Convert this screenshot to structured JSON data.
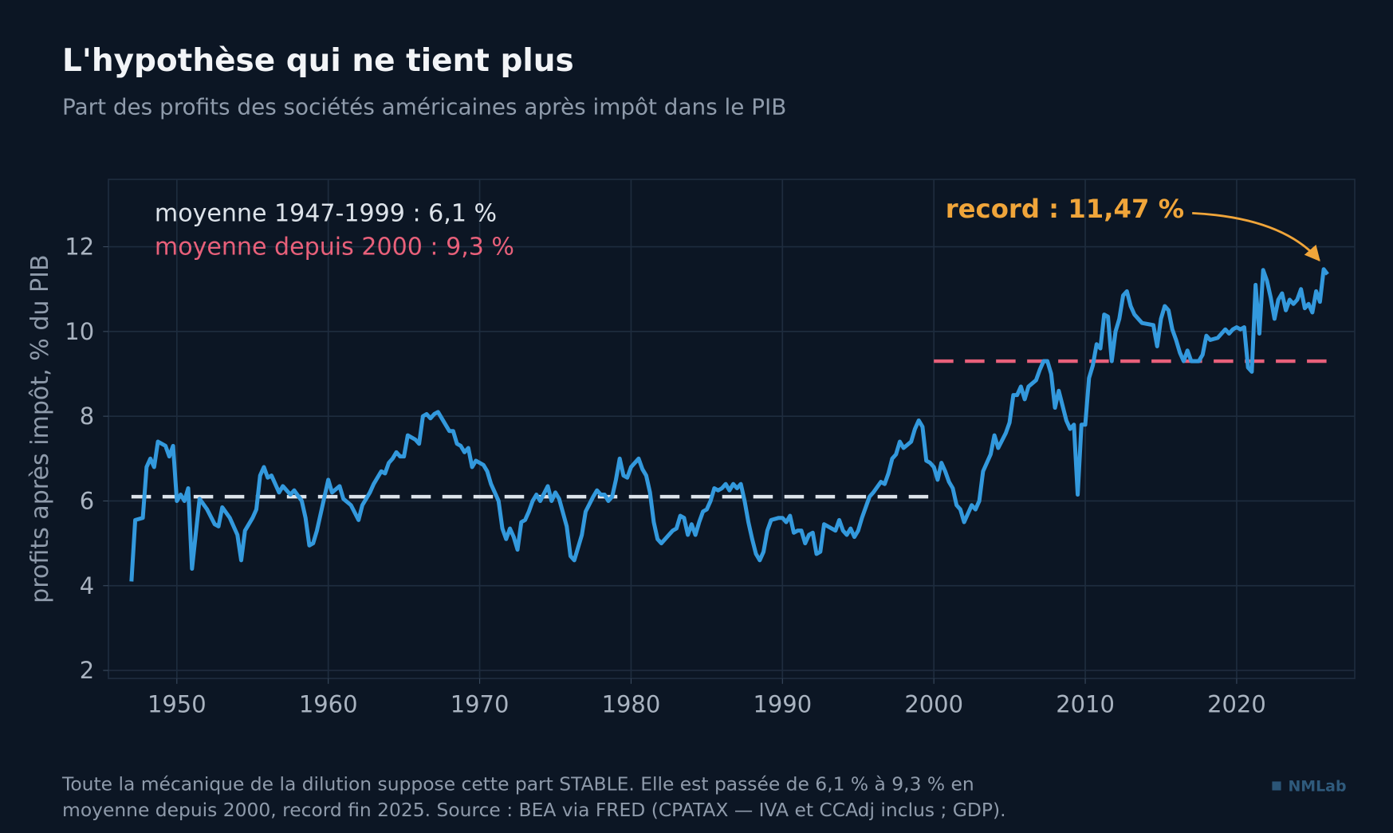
{
  "chart_data": {
    "type": "line",
    "title": "L'hypothèse qui ne tient plus",
    "subtitle": "Part des profits des sociétés américaines après impôt dans le PIB",
    "ylabel": "profits après impôt, % du PIB",
    "footnote": [
      "Toute la mécanique de la dilution suppose cette part STABLE. Elle est passée de 6,1 % à 9,3 % en",
      "moyenne depuis 2000, record fin 2025. Source : BEA via FRED (CPATAX — IVA et CCAdj inclus ; GDP)."
    ],
    "brand": "NMLab",
    "annotation": "record : 11,47 %",
    "annotation_color": "#f0a53a",
    "grid": true,
    "xlim": [
      1945.48,
      2027.8
    ],
    "ylim": [
      1.81,
      13.59
    ],
    "xticks": [
      1950,
      1960,
      1970,
      1980,
      1990,
      2000,
      2010,
      2020
    ],
    "yticks": [
      2,
      4,
      6,
      8,
      10,
      12
    ],
    "mean_lines": [
      {
        "label": "moyenne 1947-1999 : 6,1 %",
        "value": 6.1,
        "x": [
          1947,
          2000
        ],
        "color": "#dde3ea"
      },
      {
        "label": "moyenne depuis 2000 : 9,3 %",
        "value": 9.3,
        "x": [
          2000,
          2026
        ],
        "color": "#e8607a"
      }
    ],
    "x": [
      1947.0,
      1947.25,
      1947.75,
      1948.0,
      1948.25,
      1948.5,
      1948.75,
      1949.25,
      1949.5,
      1949.75,
      1950.0,
      1950.25,
      1950.5,
      1950.75,
      1951.0,
      1951.5,
      1952.0,
      1952.5,
      1952.75,
      1953.0,
      1953.5,
      1953.75,
      1954.0,
      1954.25,
      1954.5,
      1955.0,
      1955.25,
      1955.5,
      1955.75,
      1956.0,
      1956.25,
      1956.75,
      1957.0,
      1957.5,
      1957.75,
      1958.25,
      1958.5,
      1958.75,
      1959.0,
      1959.25,
      1959.75,
      1960.0,
      1960.25,
      1960.75,
      1961.0,
      1961.5,
      1962.0,
      1962.25,
      1962.75,
      1963.0,
      1963.5,
      1963.75,
      1964.0,
      1964.25,
      1964.5,
      1964.75,
      1965.0,
      1965.25,
      1965.75,
      1966.0,
      1966.25,
      1966.5,
      1966.75,
      1967.0,
      1967.25,
      1967.75,
      1968.0,
      1968.25,
      1968.5,
      1968.75,
      1969.0,
      1969.25,
      1969.5,
      1969.75,
      1970.25,
      1970.5,
      1970.75,
      1971.25,
      1971.5,
      1971.75,
      1972.0,
      1972.25,
      1972.5,
      1972.75,
      1973.0,
      1973.25,
      1973.5,
      1973.75,
      1974.0,
      1974.5,
      1974.75,
      1975.0,
      1975.25,
      1975.75,
      1976.0,
      1976.25,
      1976.75,
      1977.0,
      1977.5,
      1977.75,
      1978.0,
      1978.25,
      1978.5,
      1978.75,
      1979.0,
      1979.25,
      1979.5,
      1979.75,
      1980.0,
      1980.5,
      1980.75,
      1981.0,
      1981.25,
      1981.5,
      1981.75,
      1982.0,
      1982.5,
      1982.75,
      1983.0,
      1983.25,
      1983.5,
      1983.75,
      1984.0,
      1984.25,
      1984.5,
      1984.75,
      1985.0,
      1985.25,
      1985.5,
      1985.75,
      1986.0,
      1986.25,
      1986.5,
      1986.75,
      1987.0,
      1987.25,
      1987.5,
      1987.75,
      1988.0,
      1988.25,
      1988.5,
      1988.75,
      1989.0,
      1989.25,
      1989.75,
      1990.0,
      1990.25,
      1990.5,
      1990.75,
      1991.0,
      1991.25,
      1991.5,
      1991.75,
      1992.0,
      1992.25,
      1992.5,
      1992.75,
      1993.0,
      1993.5,
      1993.75,
      1994.0,
      1994.25,
      1994.5,
      1994.75,
      1995.0,
      1995.25,
      1995.75,
      1996.0,
      1996.5,
      1996.75,
      1997.0,
      1997.25,
      1997.5,
      1997.75,
      1998.0,
      1998.5,
      1998.75,
      1999.0,
      1999.25,
      1999.5,
      1999.75,
      2000.0,
      2000.25,
      2000.5,
      2000.75,
      2001.0,
      2001.25,
      2001.5,
      2001.75,
      2002.0,
      2002.25,
      2002.5,
      2002.75,
      2003.0,
      2003.25,
      2003.5,
      2003.75,
      2004.0,
      2004.25,
      2004.75,
      2005.0,
      2005.25,
      2005.5,
      2005.75,
      2006.0,
      2006.25,
      2006.75,
      2007.0,
      2007.25,
      2007.5,
      2007.75,
      2008.0,
      2008.25,
      2008.5,
      2008.75,
      2009.0,
      2009.25,
      2009.5,
      2009.75,
      2010.0,
      2010.25,
      2010.5,
      2010.75,
      2011.0,
      2011.25,
      2011.5,
      2011.75,
      2012.0,
      2012.25,
      2012.5,
      2012.75,
      2013.0,
      2013.25,
      2013.5,
      2013.75,
      2014.5,
      2014.75,
      2015.0,
      2015.25,
      2015.5,
      2015.75,
      2016.0,
      2016.25,
      2016.5,
      2016.75,
      2017.0,
      2017.5,
      2017.75,
      2018.0,
      2018.25,
      2018.75,
      2019.0,
      2019.25,
      2019.5,
      2019.75,
      2020.0,
      2020.25,
      2020.5,
      2020.75,
      2021.0,
      2021.25,
      2021.5,
      2021.75,
      2022.0,
      2022.25,
      2022.5,
      2022.75,
      2023.0,
      2023.25,
      2023.5,
      2023.75,
      2024.0,
      2024.25,
      2024.5,
      2024.75,
      2025.0,
      2025.25,
      2025.5,
      2025.75,
      2026.0
    ],
    "series": [
      {
        "name": "profits après impôt",
        "color": "#3399dd",
        "values": [
          4.1,
          5.55,
          5.6,
          6.8,
          7.0,
          6.8,
          7.4,
          7.3,
          7.05,
          7.3,
          6.0,
          6.15,
          6.0,
          6.3,
          4.4,
          6.05,
          5.8,
          5.45,
          5.4,
          5.85,
          5.6,
          5.4,
          5.2,
          4.6,
          5.3,
          5.6,
          5.8,
          6.6,
          6.8,
          6.55,
          6.6,
          6.2,
          6.35,
          6.15,
          6.25,
          6.0,
          5.6,
          4.95,
          5.0,
          5.3,
          6.1,
          6.5,
          6.2,
          6.35,
          6.05,
          5.9,
          5.55,
          5.9,
          6.2,
          6.4,
          6.7,
          6.65,
          6.9,
          7.0,
          7.15,
          7.05,
          7.05,
          7.55,
          7.45,
          7.35,
          8.0,
          8.05,
          7.95,
          8.05,
          8.1,
          7.8,
          7.65,
          7.65,
          7.35,
          7.3,
          7.15,
          7.25,
          6.8,
          6.95,
          6.85,
          6.7,
          6.4,
          6.0,
          5.35,
          5.1,
          5.35,
          5.15,
          4.85,
          5.5,
          5.55,
          5.75,
          6.0,
          6.15,
          6.0,
          6.35,
          6.0,
          6.2,
          6.05,
          5.4,
          4.7,
          4.6,
          5.2,
          5.75,
          6.1,
          6.25,
          6.15,
          6.15,
          6.0,
          6.1,
          6.5,
          7.0,
          6.6,
          6.55,
          6.8,
          7.0,
          6.75,
          6.6,
          6.2,
          5.5,
          5.1,
          5.0,
          5.2,
          5.3,
          5.35,
          5.65,
          5.6,
          5.2,
          5.45,
          5.2,
          5.5,
          5.75,
          5.8,
          6.0,
          6.3,
          6.25,
          6.3,
          6.4,
          6.25,
          6.4,
          6.3,
          6.4,
          6.0,
          5.5,
          5.1,
          4.75,
          4.6,
          4.8,
          5.3,
          5.55,
          5.6,
          5.6,
          5.5,
          5.65,
          5.25,
          5.3,
          5.3,
          5.0,
          5.2,
          5.25,
          4.75,
          4.8,
          5.45,
          5.4,
          5.3,
          5.55,
          5.3,
          5.2,
          5.35,
          5.15,
          5.3,
          5.6,
          6.1,
          6.2,
          6.45,
          6.4,
          6.65,
          7.0,
          7.1,
          7.4,
          7.25,
          7.4,
          7.7,
          7.9,
          7.75,
          6.95,
          6.9,
          6.8,
          6.5,
          6.9,
          6.7,
          6.45,
          6.3,
          5.9,
          5.8,
          5.5,
          5.7,
          5.9,
          5.8,
          6.0,
          6.7,
          6.9,
          7.1,
          7.55,
          7.25,
          7.6,
          7.85,
          8.5,
          8.5,
          8.7,
          8.4,
          8.7,
          8.85,
          9.1,
          9.3,
          9.3,
          9.0,
          8.2,
          8.6,
          8.25,
          7.9,
          7.7,
          7.8,
          6.15,
          7.8,
          7.8,
          8.9,
          9.2,
          9.7,
          9.6,
          10.4,
          10.35,
          9.3,
          10.0,
          10.3,
          10.85,
          10.95,
          10.6,
          10.4,
          10.3,
          10.2,
          10.15,
          9.65,
          10.3,
          10.6,
          10.5,
          10.05,
          9.8,
          9.5,
          9.3,
          9.55,
          9.3,
          9.3,
          9.45,
          9.9,
          9.8,
          9.85,
          9.95,
          10.05,
          9.95,
          10.05,
          10.1,
          10.05,
          10.1,
          9.15,
          9.05,
          11.1,
          9.95,
          11.45,
          11.2,
          10.8,
          10.3,
          10.75,
          10.9,
          10.5,
          10.75,
          10.65,
          10.75,
          11.0,
          10.55,
          10.65,
          10.45,
          10.95,
          10.7,
          11.47,
          11.35
        ]
      }
    ]
  }
}
